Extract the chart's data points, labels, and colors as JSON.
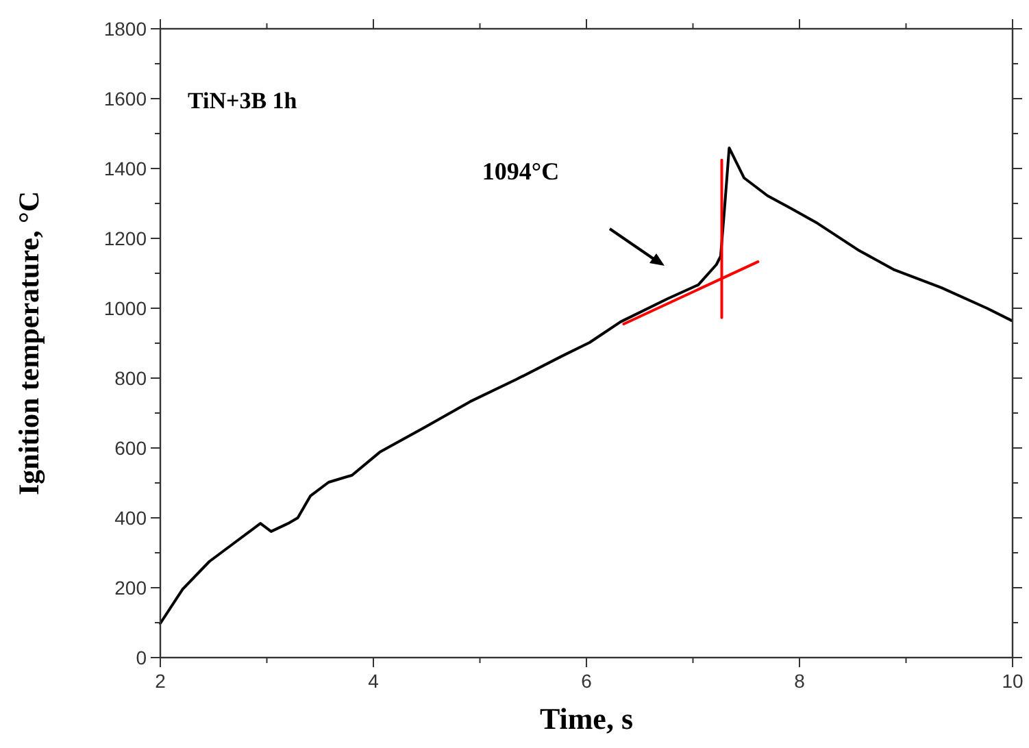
{
  "chart_data": {
    "type": "line",
    "xlabel": "Time, s",
    "ylabel": "Ignition temperature, °C",
    "xlim": [
      2,
      10
    ],
    "xticks": [
      2,
      {
        "value": 3,
        "label": null
      },
      4,
      {
        "value": 5,
        "label": null
      },
      6,
      {
        "value": 7,
        "label": null
      },
      8,
      {
        "value": 9,
        "label": null
      },
      10
    ],
    "ylim": [
      0,
      1800
    ],
    "yticks": [
      0,
      {
        "value": 100,
        "label": null
      },
      200,
      {
        "value": 300,
        "label": null
      },
      400,
      {
        "value": 500,
        "label": null
      },
      600,
      {
        "value": 700,
        "label": null
      },
      800,
      {
        "value": 900,
        "label": null
      },
      1000,
      {
        "value": 1100,
        "label": null
      },
      1200,
      {
        "value": 1300,
        "label": null
      },
      1400,
      {
        "value": 1500,
        "label": null
      },
      1600,
      {
        "value": 1700,
        "label": null
      },
      1800
    ],
    "grid": false,
    "marker": "none",
    "line_style": "solid",
    "annotations": [
      "TiN+3B 1h",
      "1094°C"
    ],
    "series": [
      {
        "color": "#000000",
        "x": [
          2.0,
          2.21,
          2.46,
          2.68,
          2.94,
          3.04,
          3.2,
          3.29,
          3.41,
          3.58,
          3.8,
          4.06,
          4.48,
          4.91,
          5.34,
          5.77,
          6.03,
          6.32,
          6.76,
          7.05,
          7.22,
          7.26,
          7.3,
          7.34,
          7.48,
          7.7,
          7.92,
          8.17,
          8.56,
          8.89,
          9.33,
          9.76,
          9.99
        ],
        "values": [
          98,
          196,
          275,
          325,
          384,
          361,
          384,
          400,
          463,
          502,
          522,
          588,
          659,
          733,
          796,
          863,
          902,
          961,
          1027,
          1067,
          1125,
          1149,
          1300,
          1459,
          1373,
          1322,
          1286,
          1243,
          1165,
          1110,
          1059,
          1000,
          965
        ]
      },
      {
        "color": "#ff0000",
        "x": [
          6.35,
          7.61
        ],
        "values": [
          955,
          1133
        ]
      },
      {
        "color": "#ff0000",
        "x": [
          7.27,
          7.27
        ],
        "values": [
          973,
          1424
        ]
      }
    ]
  }
}
